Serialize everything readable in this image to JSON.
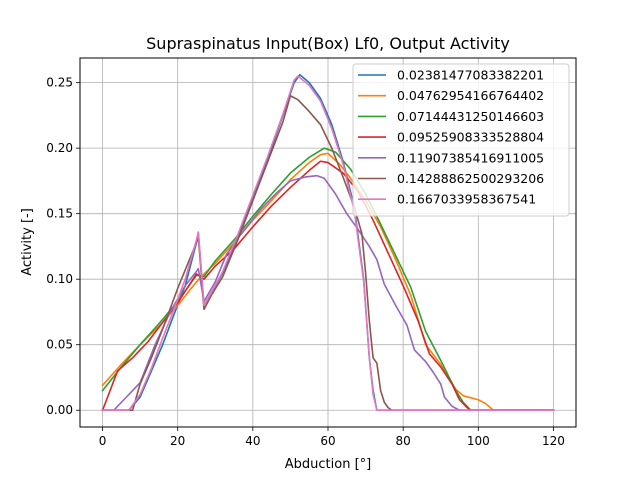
{
  "chart_data": {
    "type": "line",
    "title": "Supraspinatus Input(Box) Lf0, Output Activity",
    "xlabel": "Abduction [°]",
    "ylabel": "Activity [-]",
    "xlim": [
      -6,
      126
    ],
    "ylim": [
      -0.0128,
      0.2688
    ],
    "xticks": [
      0,
      20,
      40,
      60,
      80,
      100,
      120
    ],
    "xtick_labels": [
      "0",
      "20",
      "40",
      "60",
      "80",
      "100",
      "120"
    ],
    "yticks": [
      0.0,
      0.05,
      0.1,
      0.15,
      0.2,
      0.25
    ],
    "ytick_labels": [
      "0.00",
      "0.05",
      "0.10",
      "0.15",
      "0.20",
      "0.25"
    ],
    "grid": true,
    "legend_position": "top-right",
    "series": [
      {
        "name": "0.02381477083382201",
        "color": "#1f77b4",
        "points": [
          [
            0,
            0
          ],
          [
            7,
            0
          ],
          [
            10,
            0.01
          ],
          [
            13,
            0.03
          ],
          [
            16,
            0.05
          ],
          [
            19,
            0.073
          ],
          [
            22,
            0.095
          ],
          [
            25,
            0.128
          ],
          [
            25.5,
            0.135
          ],
          [
            27,
            0.08
          ],
          [
            29,
            0.09
          ],
          [
            32,
            0.105
          ],
          [
            36,
            0.132
          ],
          [
            40,
            0.162
          ],
          [
            44,
            0.192
          ],
          [
            48,
            0.225
          ],
          [
            51,
            0.25
          ],
          [
            52.5,
            0.256
          ],
          [
            55,
            0.25
          ],
          [
            58,
            0.238
          ],
          [
            61,
            0.218
          ],
          [
            64,
            0.19
          ],
          [
            67,
            0.155
          ],
          [
            69.5,
            0.1
          ],
          [
            71,
            0.04
          ],
          [
            72,
            0.015
          ],
          [
            73,
            0
          ],
          [
            120,
            0
          ]
        ]
      },
      {
        "name": "0.04762954166764402",
        "color": "#ff7f0e",
        "points": [
          [
            0,
            0.019
          ],
          [
            5,
            0.035
          ],
          [
            10,
            0.05
          ],
          [
            15,
            0.064
          ],
          [
            20,
            0.08
          ],
          [
            25,
            0.098
          ],
          [
            27,
            0.104
          ],
          [
            30,
            0.112
          ],
          [
            35,
            0.128
          ],
          [
            40,
            0.145
          ],
          [
            45,
            0.16
          ],
          [
            50,
            0.176
          ],
          [
            55,
            0.189
          ],
          [
            58,
            0.195
          ],
          [
            60,
            0.196
          ],
          [
            63,
            0.188
          ],
          [
            66,
            0.177
          ],
          [
            70,
            0.16
          ],
          [
            74,
            0.14
          ],
          [
            78,
            0.115
          ],
          [
            82,
            0.088
          ],
          [
            86,
            0.05
          ],
          [
            90,
            0.035
          ],
          [
            94,
            0.016
          ],
          [
            96,
            0.011
          ],
          [
            100,
            0.008
          ],
          [
            102,
            0.005
          ],
          [
            104,
            0
          ],
          [
            120,
            0
          ]
        ]
      },
      {
        "name": "0.07144431250146603",
        "color": "#2ca02c",
        "points": [
          [
            0,
            0.015
          ],
          [
            5,
            0.033
          ],
          [
            10,
            0.05
          ],
          [
            15,
            0.066
          ],
          [
            20,
            0.083
          ],
          [
            25,
            0.103
          ],
          [
            27,
            0.102
          ],
          [
            30,
            0.114
          ],
          [
            35,
            0.13
          ],
          [
            40,
            0.148
          ],
          [
            45,
            0.165
          ],
          [
            50,
            0.181
          ],
          [
            55,
            0.193
          ],
          [
            59,
            0.2
          ],
          [
            62,
            0.197
          ],
          [
            66,
            0.184
          ],
          [
            70,
            0.165
          ],
          [
            74,
            0.142
          ],
          [
            78,
            0.118
          ],
          [
            82,
            0.094
          ],
          [
            86,
            0.06
          ],
          [
            90,
            0.038
          ],
          [
            94,
            0.015
          ],
          [
            96,
            0.006
          ],
          [
            98,
            0
          ],
          [
            120,
            0
          ]
        ]
      },
      {
        "name": "0.09525908333528804",
        "color": "#d62728",
        "points": [
          [
            0,
            0
          ],
          [
            4,
            0.03
          ],
          [
            8,
            0.04
          ],
          [
            12,
            0.052
          ],
          [
            16,
            0.067
          ],
          [
            20,
            0.082
          ],
          [
            25,
            0.104
          ],
          [
            27,
            0.1
          ],
          [
            30,
            0.11
          ],
          [
            35,
            0.123
          ],
          [
            40,
            0.14
          ],
          [
            45,
            0.156
          ],
          [
            50,
            0.17
          ],
          [
            55,
            0.183
          ],
          [
            58,
            0.19
          ],
          [
            60,
            0.189
          ],
          [
            64,
            0.181
          ],
          [
            68,
            0.167
          ],
          [
            72,
            0.145
          ],
          [
            76,
            0.12
          ],
          [
            80,
            0.095
          ],
          [
            84,
            0.068
          ],
          [
            87,
            0.043
          ],
          [
            90,
            0.033
          ],
          [
            93,
            0.02
          ],
          [
            95,
            0.008
          ],
          [
            97,
            0.002
          ],
          [
            98,
            0
          ],
          [
            120,
            0
          ]
        ]
      },
      {
        "name": "0.11907385416911005",
        "color": "#9467bd",
        "points": [
          [
            0,
            0
          ],
          [
            3,
            0
          ],
          [
            5,
            0.006
          ],
          [
            8,
            0.015
          ],
          [
            10,
            0.021
          ],
          [
            14,
            0.05
          ],
          [
            18,
            0.075
          ],
          [
            22,
            0.095
          ],
          [
            25,
            0.106
          ],
          [
            25.5,
            0.108
          ],
          [
            27,
            0.083
          ],
          [
            30,
            0.098
          ],
          [
            33,
            0.119
          ],
          [
            37,
            0.135
          ],
          [
            42,
            0.153
          ],
          [
            46,
            0.165
          ],
          [
            50,
            0.175
          ],
          [
            54,
            0.178
          ],
          [
            57,
            0.179
          ],
          [
            59,
            0.177
          ],
          [
            62,
            0.165
          ],
          [
            65,
            0.15
          ],
          [
            68,
            0.138
          ],
          [
            71,
            0.125
          ],
          [
            73,
            0.115
          ],
          [
            75,
            0.096
          ],
          [
            78,
            0.08
          ],
          [
            81,
            0.065
          ],
          [
            83,
            0.046
          ],
          [
            86,
            0.037
          ],
          [
            88,
            0.029
          ],
          [
            90,
            0.02
          ],
          [
            91,
            0.01
          ],
          [
            93,
            0.003
          ],
          [
            95,
            0
          ],
          [
            120,
            0
          ]
        ]
      },
      {
        "name": "0.14288862500293206",
        "color": "#8c564b",
        "points": [
          [
            0,
            0
          ],
          [
            5,
            0
          ],
          [
            8,
            0
          ],
          [
            10,
            0.02
          ],
          [
            13,
            0.04
          ],
          [
            16,
            0.062
          ],
          [
            20,
            0.093
          ],
          [
            25,
            0.128
          ],
          [
            25.5,
            0.132
          ],
          [
            27,
            0.077
          ],
          [
            29,
            0.088
          ],
          [
            32,
            0.102
          ],
          [
            36,
            0.13
          ],
          [
            40,
            0.16
          ],
          [
            44,
            0.19
          ],
          [
            48,
            0.22
          ],
          [
            50,
            0.24
          ],
          [
            52,
            0.237
          ],
          [
            55,
            0.228
          ],
          [
            58,
            0.218
          ],
          [
            61,
            0.2
          ],
          [
            64,
            0.178
          ],
          [
            67,
            0.155
          ],
          [
            69,
            0.135
          ],
          [
            70,
            0.105
          ],
          [
            71,
            0.068
          ],
          [
            72,
            0.04
          ],
          [
            73,
            0.036
          ],
          [
            74,
            0.015
          ],
          [
            75,
            0.006
          ],
          [
            76,
            0.002
          ],
          [
            77,
            0
          ],
          [
            120,
            0
          ]
        ]
      },
      {
        "name": "0.1667033958367541",
        "color": "#e377c2",
        "points": [
          [
            0,
            0
          ],
          [
            7,
            0
          ],
          [
            10,
            0.012
          ],
          [
            13,
            0.032
          ],
          [
            16,
            0.055
          ],
          [
            19,
            0.077
          ],
          [
            22,
            0.1
          ],
          [
            25,
            0.13
          ],
          [
            25.5,
            0.136
          ],
          [
            27,
            0.08
          ],
          [
            29,
            0.09
          ],
          [
            32,
            0.106
          ],
          [
            36,
            0.134
          ],
          [
            40,
            0.164
          ],
          [
            44,
            0.194
          ],
          [
            48,
            0.226
          ],
          [
            51,
            0.252
          ],
          [
            52,
            0.255
          ],
          [
            55,
            0.248
          ],
          [
            58,
            0.236
          ],
          [
            61,
            0.215
          ],
          [
            64,
            0.188
          ],
          [
            67,
            0.152
          ],
          [
            69.5,
            0.098
          ],
          [
            71,
            0.04
          ],
          [
            72,
            0.012
          ],
          [
            73,
            0
          ],
          [
            120,
            0
          ]
        ]
      }
    ]
  }
}
